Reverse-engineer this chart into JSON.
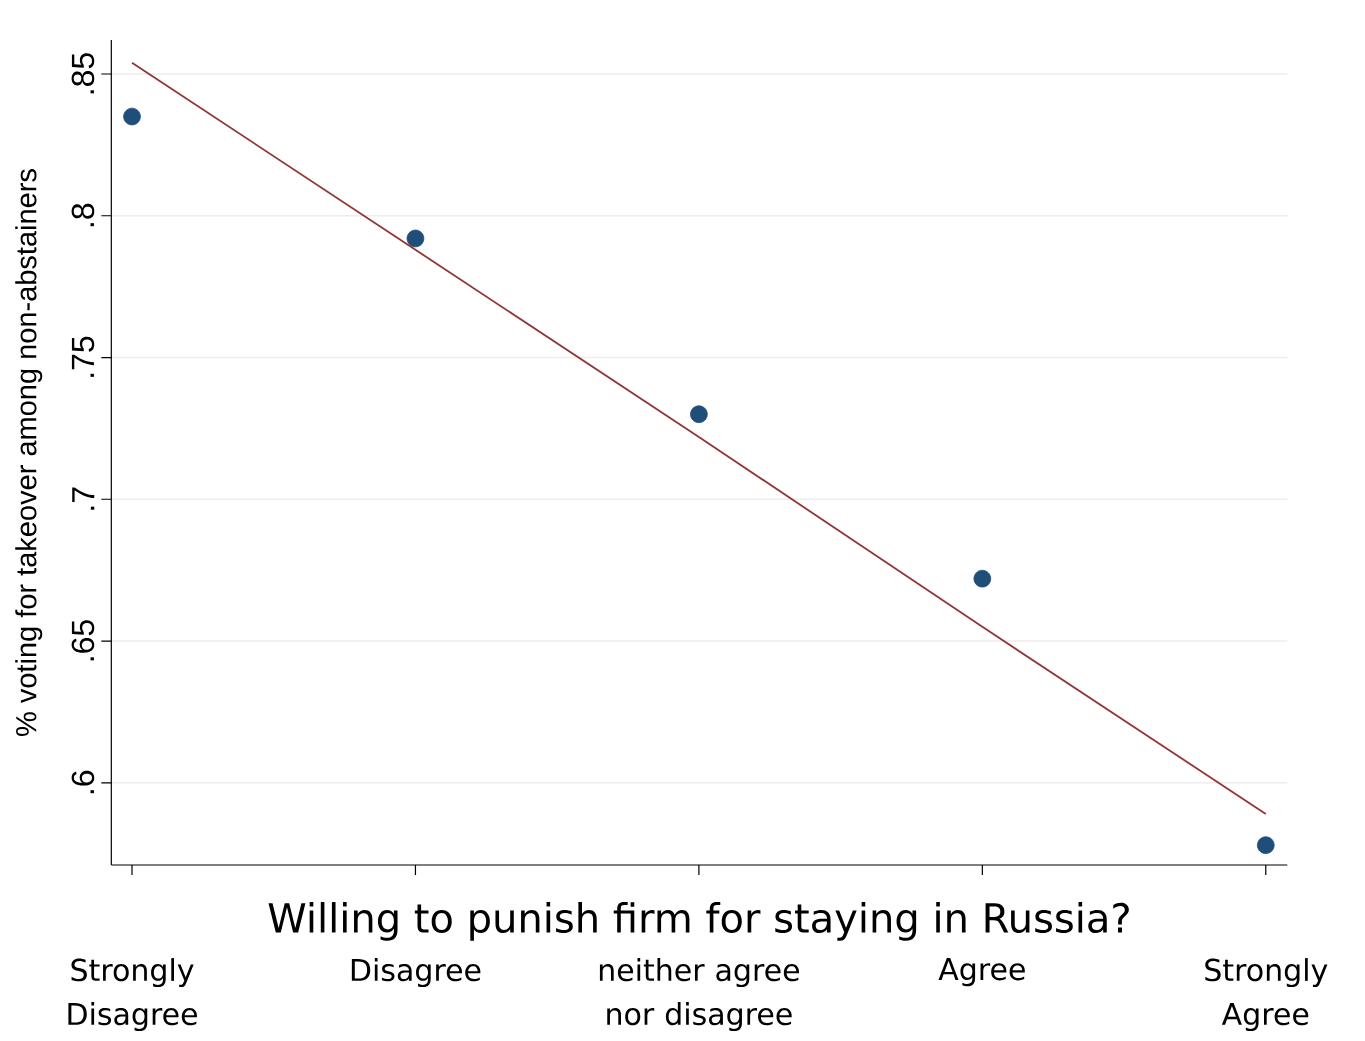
{
  "chart_data": {
    "type": "scatter",
    "xlabel": "Willing to punish firm for staying in Russia?",
    "ylabel": "% voting for takeover among non-abstainers",
    "categories": [
      "Strongly Disagree",
      "Disagree",
      "neither agree nor disagree",
      "Agree",
      "Strongly Agree"
    ],
    "series": [
      {
        "color": "#1f4e79",
        "marker": "circle",
        "values": [
          0.835,
          0.792,
          0.73,
          0.672,
          0.578
        ]
      },
      {
        "type": "line",
        "color": "#943434",
        "marker": "none",
        "values": [
          0.854,
          0.788,
          0.722,
          0.655,
          0.589
        ]
      }
    ],
    "ylim": [
      0.571,
      0.862
    ],
    "yticks": [
      {
        "value": 0.6,
        "label": ".6"
      },
      {
        "value": 0.65,
        "label": ".65"
      },
      {
        "value": 0.7,
        "label": ".7"
      },
      {
        "value": 0.75,
        "label": ".75"
      },
      {
        "value": 0.8,
        "label": ".8"
      },
      {
        "value": 0.85,
        "label": ".85"
      }
    ],
    "grid": "y"
  }
}
